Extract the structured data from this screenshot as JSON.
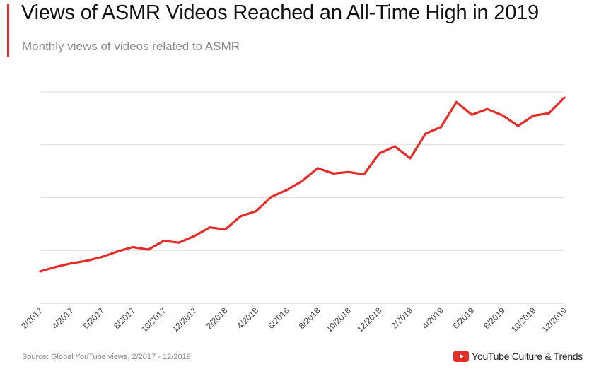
{
  "header": {
    "title": "Views of ASMR Videos Reached an All-Time High in 2019",
    "subtitle": "Monthly views of videos related to ASMR"
  },
  "footer": {
    "source": "Source: Global YouTube views, 2/2017 - 12/2019",
    "brand": "YouTube Culture & Trends"
  },
  "colors": {
    "accent": "#e52d27",
    "line": "#e52d27",
    "grid": "#dddddd"
  },
  "icons": {
    "brand_logo": "youtube-play-icon"
  },
  "chart_data": {
    "type": "line",
    "title": "Views of ASMR Videos Reached an All-Time High in 2019",
    "subtitle": "Monthly views of videos related to ASMR",
    "xlabel": "",
    "ylabel": "",
    "grid": true,
    "legend": "none",
    "y_tick_labels_shown": false,
    "ylim": [
      0,
      100
    ],
    "x_tick_labels": [
      "2/2017",
      "4/2017",
      "6/2017",
      "8/2017",
      "10/2017",
      "12/2017",
      "2/2018",
      "4/2018",
      "6/2018",
      "8/2018",
      "10/2018",
      "12/2018",
      "2/2019",
      "4/2019",
      "6/2019",
      "8/2019",
      "10/2019",
      "12/2019"
    ],
    "series": [
      {
        "x": [
          "2/2017",
          "3/2017",
          "4/2017",
          "5/2017",
          "6/2017",
          "7/2017",
          "8/2017",
          "9/2017",
          "10/2017",
          "11/2017",
          "12/2017",
          "1/2018",
          "2/2018",
          "3/2018",
          "4/2018",
          "5/2018",
          "6/2018",
          "7/2018",
          "8/2018",
          "9/2018",
          "10/2018",
          "11/2018",
          "12/2018",
          "1/2019",
          "2/2019",
          "3/2019",
          "4/2019",
          "5/2019",
          "6/2019",
          "7/2019",
          "8/2019",
          "9/2019",
          "10/2019",
          "11/2019",
          "12/2019"
        ],
        "values": [
          15.1,
          17.2,
          18.9,
          20.1,
          21.9,
          24.5,
          26.6,
          25.4,
          29.5,
          28.7,
          31.8,
          35.9,
          34.9,
          41.2,
          43.6,
          50.4,
          53.6,
          57.9,
          63.9,
          61.4,
          62.1,
          61.0,
          70.9,
          74.2,
          68.6,
          80.3,
          83.4,
          95.2,
          89.2,
          91.9,
          88.9,
          83.9,
          88.8,
          89.9,
          97.3
        ]
      }
    ]
  }
}
